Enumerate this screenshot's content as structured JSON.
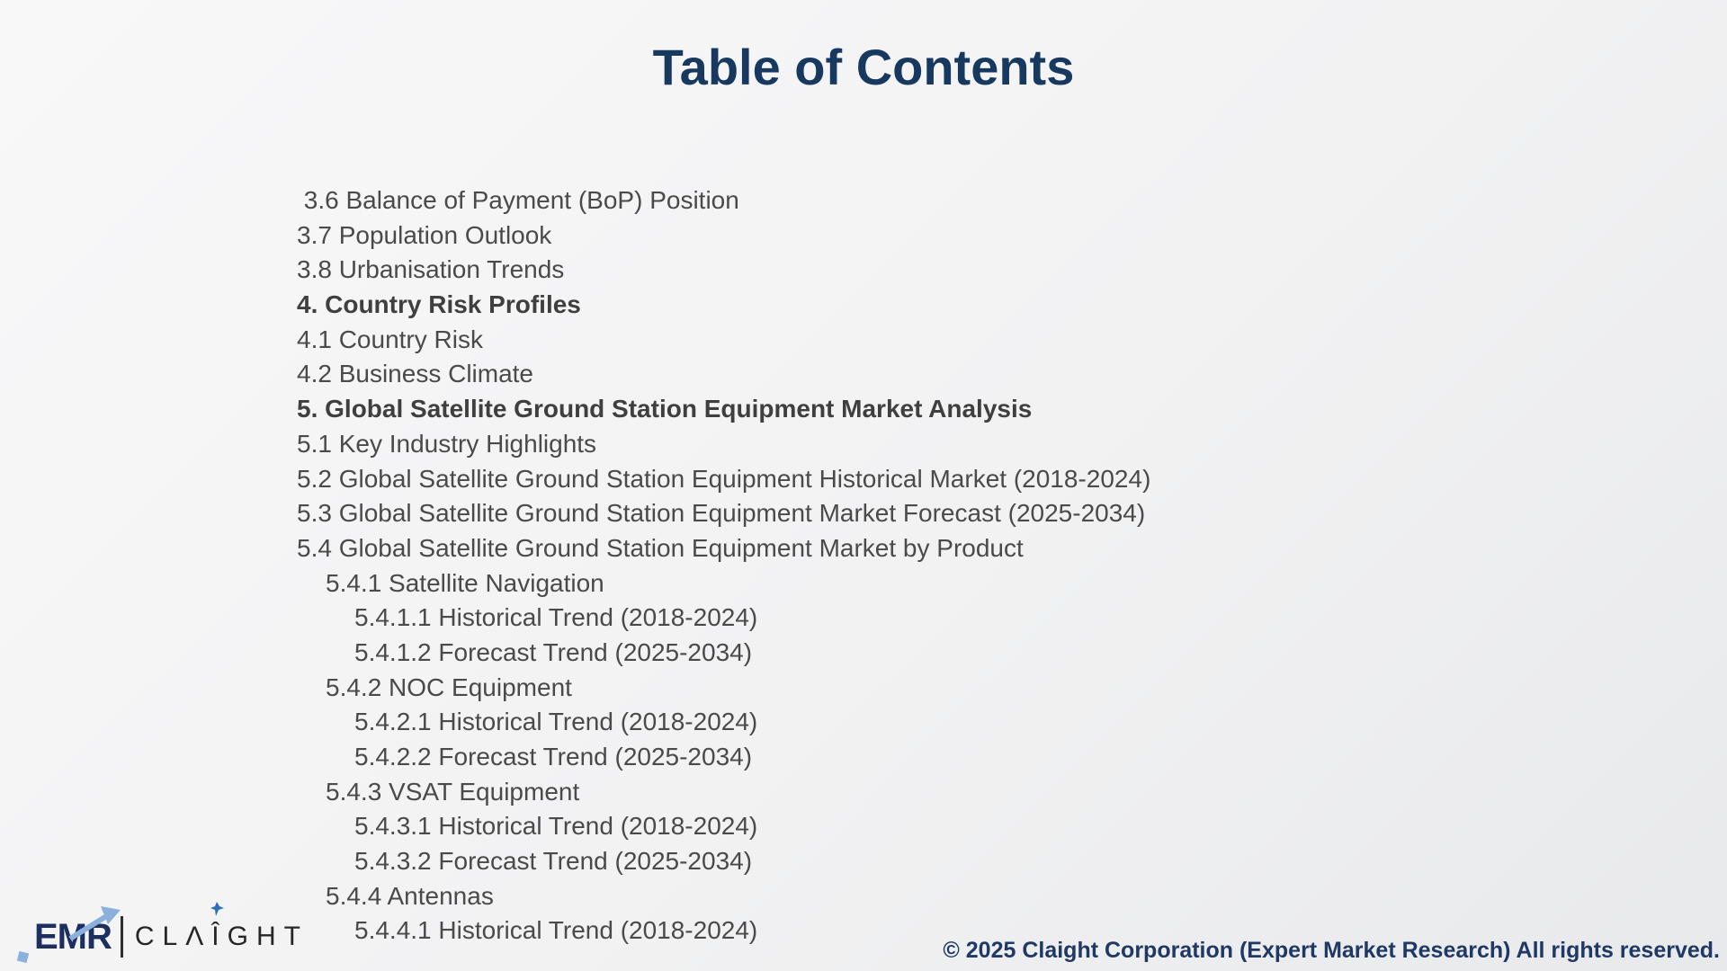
{
  "slide": {
    "title": "Table of Contents"
  },
  "toc": {
    "items": [
      {
        "text": " 3.6 Balance of Payment (BoP) Position",
        "bold": false,
        "indent": 0
      },
      {
        "text": "3.7 Population Outlook",
        "bold": false,
        "indent": 0
      },
      {
        "text": "3.8 Urbanisation Trends",
        "bold": false,
        "indent": 0
      },
      {
        "text": "4. Country Risk Profiles",
        "bold": true,
        "indent": 0
      },
      {
        "text": "4.1 Country Risk",
        "bold": false,
        "indent": 0
      },
      {
        "text": "4.2 Business Climate",
        "bold": false,
        "indent": 0
      },
      {
        "text": "5. Global Satellite Ground Station Equipment Market Analysis",
        "bold": true,
        "indent": 0
      },
      {
        "text": "5.1 Key Industry Highlights",
        "bold": false,
        "indent": 0
      },
      {
        "text": "5.2 Global Satellite Ground Station Equipment Historical Market (2018-2024)",
        "bold": false,
        "indent": 0
      },
      {
        "text": "5.3 Global Satellite Ground Station Equipment Market Forecast (2025-2034)",
        "bold": false,
        "indent": 0
      },
      {
        "text": "5.4 Global Satellite Ground Station Equipment Market by Product",
        "bold": false,
        "indent": 0
      },
      {
        "text": "5.4.1 Satellite Navigation",
        "bold": false,
        "indent": 1
      },
      {
        "text": "5.4.1.1 Historical Trend (2018-2024)",
        "bold": false,
        "indent": 2
      },
      {
        "text": "5.4.1.2 Forecast Trend (2025-2034)",
        "bold": false,
        "indent": 2
      },
      {
        "text": "5.4.2 NOC Equipment",
        "bold": false,
        "indent": 1
      },
      {
        "text": "5.4.2.1 Historical Trend (2018-2024)",
        "bold": false,
        "indent": 2
      },
      {
        "text": "5.4.2.2 Forecast Trend (2025-2034)",
        "bold": false,
        "indent": 2
      },
      {
        "text": "5.4.3 VSAT Equipment",
        "bold": false,
        "indent": 1
      },
      {
        "text": "5.4.3.1 Historical Trend (2018-2024)",
        "bold": false,
        "indent": 2
      },
      {
        "text": "5.4.3.2 Forecast Trend (2025-2034)",
        "bold": false,
        "indent": 2
      },
      {
        "text": "5.4.4 Antennas",
        "bold": false,
        "indent": 1
      },
      {
        "text": "5.4.4.1 Historical Trend (2018-2024)",
        "bold": false,
        "indent": 2
      }
    ]
  },
  "footer": {
    "logo": {
      "emr_text": "EMR",
      "claight_a": "CLΛ",
      "claight_i": "Î",
      "claight_b": "GHT"
    },
    "copyright": "© 2025 Claight Corporation (Expert Market Research) All rights reserved."
  },
  "colors": {
    "title_color": "#17395F",
    "toc_color": "#4A4A4A",
    "copyright_color": "#1F3864",
    "emr_navy": "#1C2F5F",
    "arrow_blue": "#8AB0DC",
    "spark_blue": "#2F6EB5"
  }
}
